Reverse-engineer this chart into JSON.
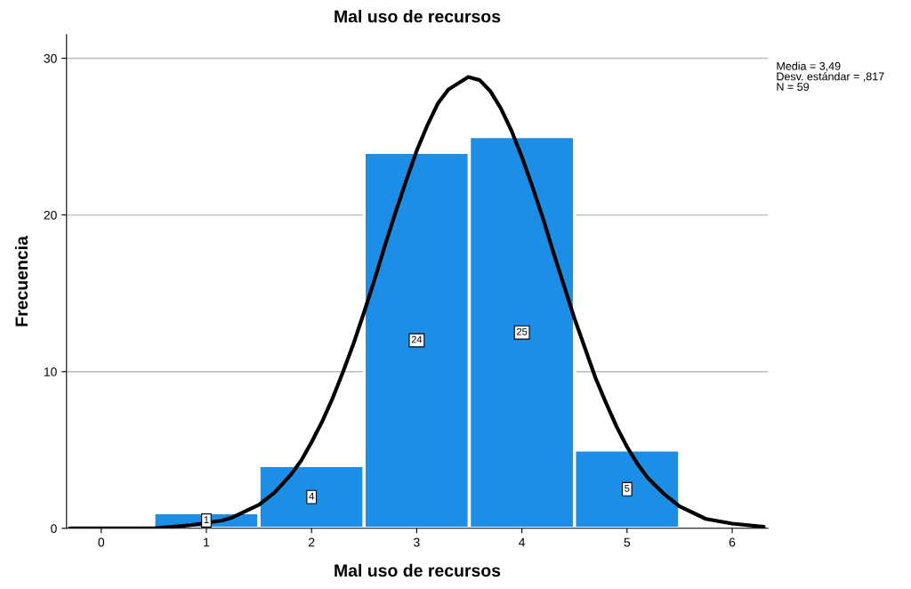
{
  "chart_data": {
    "type": "histogram",
    "title": "Mal uso de recursos",
    "xlabel": "Mal uso de recursos",
    "ylabel": "Frecuencia",
    "bins": [
      0.5,
      1.5,
      2.5,
      3.5,
      4.5,
      5.5
    ],
    "series": [
      {
        "color": "#1c8ee6",
        "values": [
          1,
          4,
          24,
          25,
          5
        ],
        "value_labels": [
          "1",
          "4",
          "24",
          "25",
          "5"
        ]
      },
      {
        "type": "line",
        "color": "#000000",
        "x": [
          -0.3,
          0.5,
          0.85,
          1.15,
          1.25,
          1.5,
          1.65,
          1.8,
          1.9,
          2.0,
          2.1,
          2.2,
          2.3,
          2.4,
          2.5,
          2.6,
          2.7,
          2.8,
          2.9,
          3.0,
          3.1,
          3.2,
          3.3,
          3.49,
          3.6,
          3.7,
          3.8,
          3.9,
          4.0,
          4.1,
          4.2,
          4.3,
          4.4,
          4.5,
          4.6,
          4.7,
          4.8,
          4.9,
          5.0,
          5.1,
          5.2,
          5.35,
          5.5,
          5.75,
          6.0,
          6.3
        ],
        "values": [
          0.0,
          0.0,
          0.2,
          0.5,
          0.7,
          1.5,
          2.3,
          3.4,
          4.3,
          5.5,
          6.8,
          8.3,
          10.0,
          11.8,
          13.8,
          15.9,
          18.1,
          20.2,
          22.2,
          24.1,
          25.7,
          27.1,
          28.0,
          28.8,
          28.6,
          27.9,
          26.8,
          25.4,
          23.7,
          21.8,
          19.8,
          17.6,
          15.5,
          13.4,
          11.5,
          9.6,
          8.0,
          6.5,
          5.2,
          4.1,
          3.2,
          2.2,
          1.4,
          0.6,
          0.3,
          0.1
        ]
      }
    ],
    "xlim": [
      -0.33,
      6.34
    ],
    "xticks": [
      0,
      1,
      2,
      3,
      4,
      5,
      6
    ],
    "ylim": [
      0,
      31.5
    ],
    "yticks": [
      0,
      10,
      20,
      30
    ],
    "grid": "y",
    "annotations": [
      "Media = 3,49",
      "Desv. estándar = ,817",
      "N = 59"
    ]
  }
}
